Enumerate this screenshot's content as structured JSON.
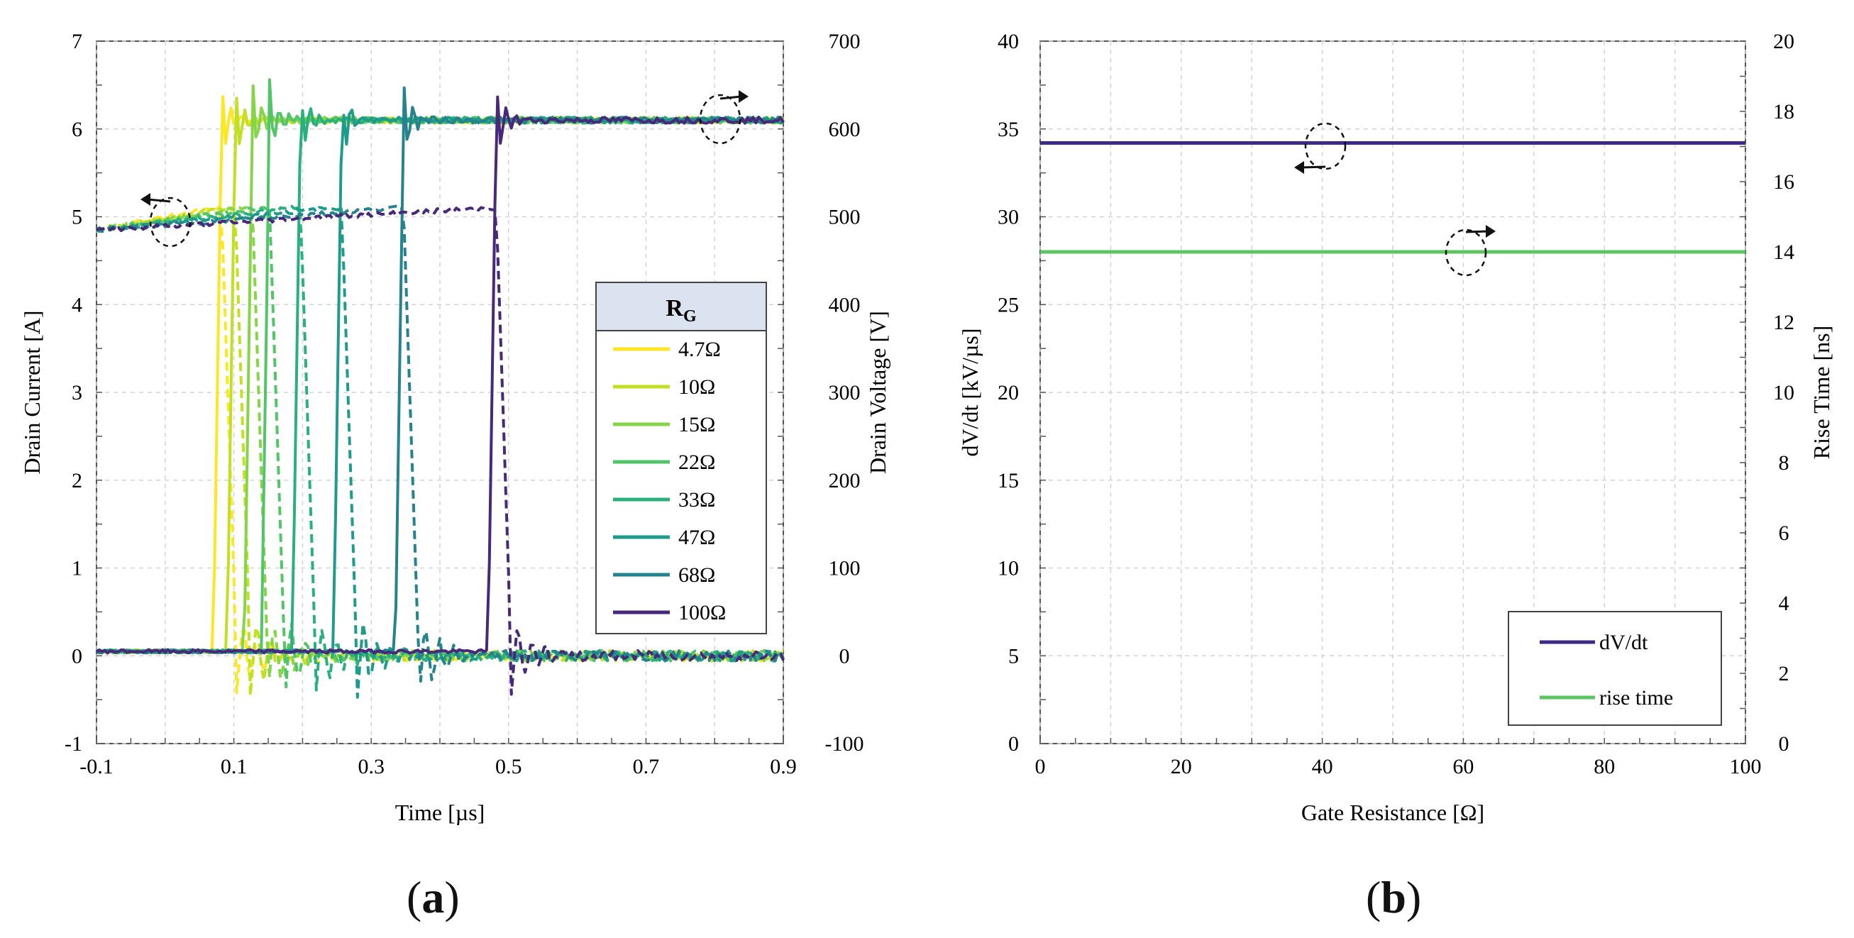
{
  "chart_data": [
    {
      "type": "line",
      "panel": "a",
      "xlabel": "Time [µs]",
      "ylabel": "Drain Current [A]",
      "y2label": "Drain Voltage [V]",
      "xlim": [
        -0.1,
        0.9
      ],
      "ylim": [
        -1,
        7
      ],
      "y2lim": [
        -100,
        700
      ],
      "xticks": [
        "-0.1",
        "0.1",
        "0.3",
        "0.5",
        "0.7",
        "0.9"
      ],
      "yticks": [
        "-1",
        "0",
        "1",
        "2",
        "3",
        "4",
        "5",
        "6",
        "7"
      ],
      "y2ticks": [
        "-100",
        "0",
        "100",
        "200",
        "300",
        "400",
        "500",
        "600",
        "700"
      ],
      "grid": true,
      "legend": {
        "title": "R",
        "title_sub": "G",
        "placement": "right-middle"
      },
      "series_note": "solid = drain voltage (right axis), dashed = drain current (left axis)",
      "series": [
        {
          "name": "4.7Ω",
          "color": "#FDE725",
          "switch_time": 0.07
        },
        {
          "name": "10Ω",
          "color": "#C2DF23",
          "switch_time": 0.09
        },
        {
          "name": "15Ω",
          "color": "#86D549",
          "switch_time": 0.115
        },
        {
          "name": "22Ω",
          "color": "#52C569",
          "switch_time": 0.14
        },
        {
          "name": "33Ω",
          "color": "#2AB07F",
          "switch_time": 0.185
        },
        {
          "name": "47Ω",
          "color": "#1E9B8A",
          "switch_time": 0.245
        },
        {
          "name": "68Ω",
          "color": "#25838E",
          "switch_time": 0.335
        },
        {
          "name": "100Ω",
          "color": "#482878",
          "switch_time": 0.47
        }
      ],
      "levels": {
        "voltage_high_V": 610,
        "voltage_low_V": 5,
        "current_on_A_start": 4.85,
        "current_on_A_end": 5.1,
        "current_off_A": 0
      }
    },
    {
      "type": "line",
      "panel": "b",
      "xlabel": "Gate Resistance [Ω]",
      "ylabel": "dV/dt [kV/µs]",
      "y2label": "Rise Time [ns]",
      "xlim": [
        0,
        100
      ],
      "ylim": [
        0,
        40
      ],
      "y2lim": [
        0,
        20
      ],
      "xticks": [
        "0",
        "20",
        "40",
        "60",
        "80",
        "100"
      ],
      "yticks": [
        "0",
        "5",
        "10",
        "15",
        "20",
        "25",
        "30",
        "35",
        "40"
      ],
      "y2ticks": [
        "0",
        "2",
        "4",
        "6",
        "8",
        "10",
        "12",
        "14",
        "16",
        "18",
        "20"
      ],
      "grid": true,
      "legend": {
        "placement": "bottom-right"
      },
      "series": [
        {
          "name": "dV/dt",
          "axis": "left",
          "color": "#3F2B86",
          "x": [
            0,
            100
          ],
          "y": [
            34.2,
            34.2
          ]
        },
        {
          "name": "rise time",
          "axis": "right",
          "color": "#5CC560",
          "x": [
            0,
            100
          ],
          "y": [
            14,
            14
          ]
        }
      ]
    }
  ],
  "captions": {
    "a": {
      "open": "(",
      "letter": "a",
      "close": ")"
    },
    "b": {
      "open": "(",
      "letter": "b",
      "close": ")"
    }
  }
}
